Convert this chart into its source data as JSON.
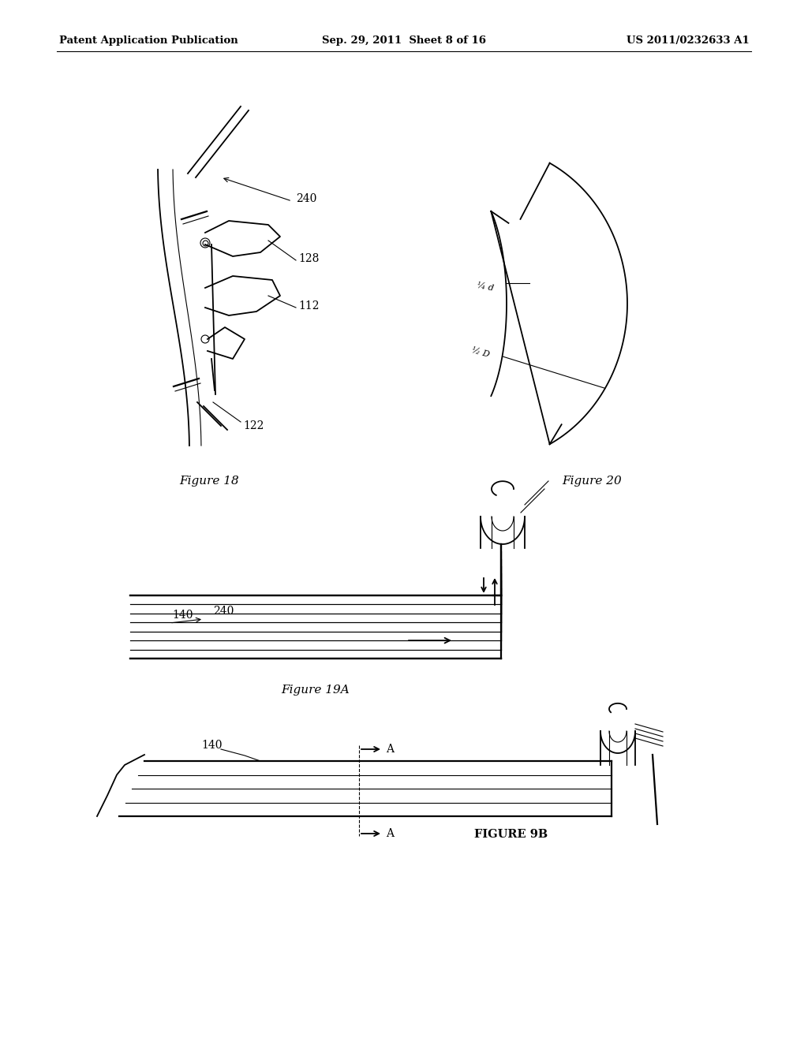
{
  "background_color": "#ffffff",
  "header_left": "Patent Application Publication",
  "header_center": "Sep. 29, 2011  Sheet 8 of 16",
  "header_right": "US 2011/0232633 A1",
  "fig18_caption": "Figure 18",
  "fig19a_caption": "Figure 19A",
  "fig20_caption": "Figure 20",
  "fig9b_caption": "FIGURE 9B"
}
